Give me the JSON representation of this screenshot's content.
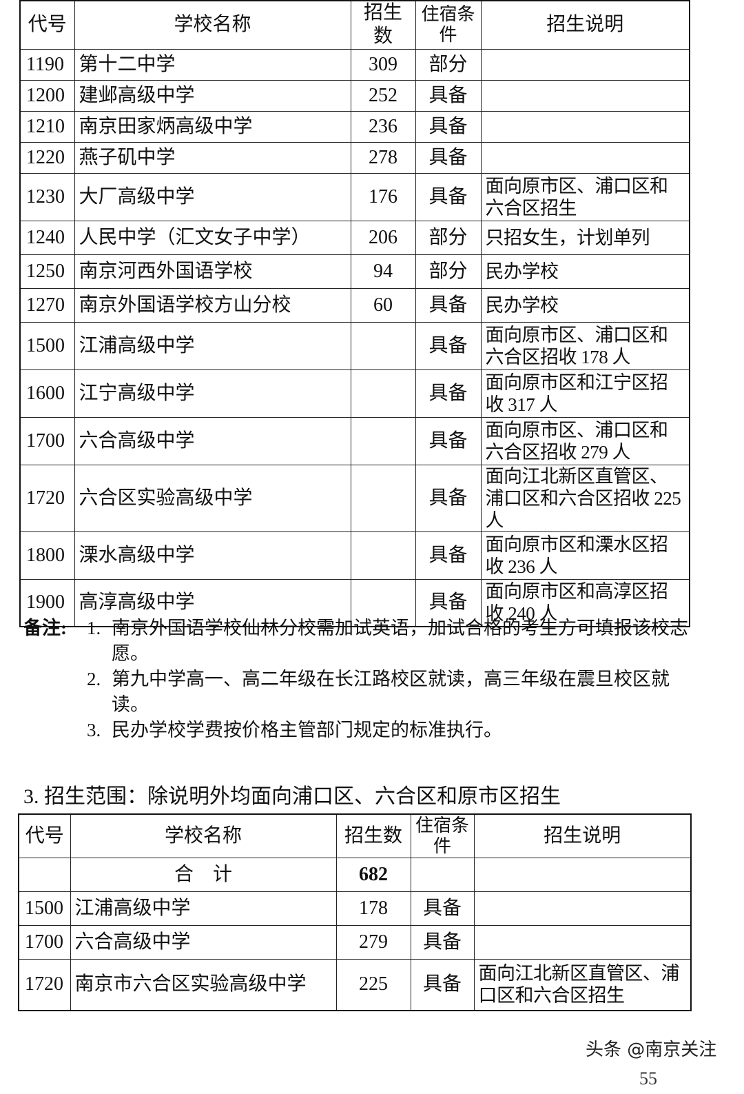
{
  "table1": {
    "headers": {
      "code": "代号",
      "name": "学校名称",
      "count": "招生数",
      "lodging": "住宿条件",
      "note": "招生说明"
    },
    "rows": [
      {
        "code": "1190",
        "name": "第十二中学",
        "count": "309",
        "lodging": "部分",
        "note": ""
      },
      {
        "code": "1200",
        "name": "建邺高级中学",
        "count": "252",
        "lodging": "具备",
        "note": ""
      },
      {
        "code": "1210",
        "name": "南京田家炳高级中学",
        "count": "236",
        "lodging": "具备",
        "note": ""
      },
      {
        "code": "1220",
        "name": "燕子矶中学",
        "count": "278",
        "lodging": "具备",
        "note": ""
      },
      {
        "code": "1230",
        "name": "大厂高级中学",
        "count": "176",
        "lodging": "具备",
        "note": "面向原市区、浦口区和六合区招生"
      },
      {
        "code": "1240",
        "name": "人民中学（汇文女子中学）",
        "count": "206",
        "lodging": "部分",
        "note": "只招女生，计划单列"
      },
      {
        "code": "1250",
        "name": "南京河西外国语学校",
        "count": "94",
        "lodging": "部分",
        "note": "民办学校"
      },
      {
        "code": "1270",
        "name": "南京外国语学校方山分校",
        "count": "60",
        "lodging": "具备",
        "note": "民办学校"
      },
      {
        "code": "1500",
        "name": "江浦高级中学",
        "count": "",
        "lodging": "具备",
        "note": "面向原市区、浦口区和六合区招收 178 人"
      },
      {
        "code": "1600",
        "name": "江宁高级中学",
        "count": "",
        "lodging": "具备",
        "note": "面向原市区和江宁区招收 317 人"
      },
      {
        "code": "1700",
        "name": "六合高级中学",
        "count": "",
        "lodging": "具备",
        "note": "面向原市区、浦口区和六合区招收 279 人"
      },
      {
        "code": "1720",
        "name": "六合区实验高级中学",
        "count": "",
        "lodging": "具备",
        "note": "面向江北新区直管区、浦口区和六合区招收 225 人"
      },
      {
        "code": "1800",
        "name": "溧水高级中学",
        "count": "",
        "lodging": "具备",
        "note": "面向原市区和溧水区招收 236 人"
      },
      {
        "code": "1900",
        "name": "高淳高级中学",
        "count": "",
        "lodging": "具备",
        "note": "面向原市区和高淳区招收 240 人"
      }
    ]
  },
  "notes": {
    "label": "备注:",
    "items": [
      {
        "num": "1.",
        "text": "南京外国语学校仙林分校需加试英语，加试合格的考生方可填报该校志愿。"
      },
      {
        "num": "2.",
        "text": "第九中学高一、高二年级在长江路校区就读，高三年级在震旦校区就读。"
      },
      {
        "num": "3.",
        "text": "民办学校学费按价格主管部门规定的标准执行。"
      }
    ]
  },
  "section3": {
    "title": "3. 招生范围：除说明外均面向浦口区、六合区和原市区招生"
  },
  "table2": {
    "headers": {
      "code": "代号",
      "name": "学校名称",
      "count": "招生数",
      "lodging": "住宿条件",
      "note": "招生说明"
    },
    "total": {
      "label": "合　计",
      "count": "682"
    },
    "rows": [
      {
        "code": "1500",
        "name": "江浦高级中学",
        "count": "178",
        "lodging": "具备",
        "note": ""
      },
      {
        "code": "1700",
        "name": "六合高级中学",
        "count": "279",
        "lodging": "具备",
        "note": ""
      },
      {
        "code": "1720",
        "name": "南京市六合区实验高级中学",
        "count": "225",
        "lodging": "具备",
        "note": "面向江北新区直管区、浦口区和六合区招生"
      }
    ]
  },
  "watermark": "头条 @南京关注",
  "page_number": "55"
}
